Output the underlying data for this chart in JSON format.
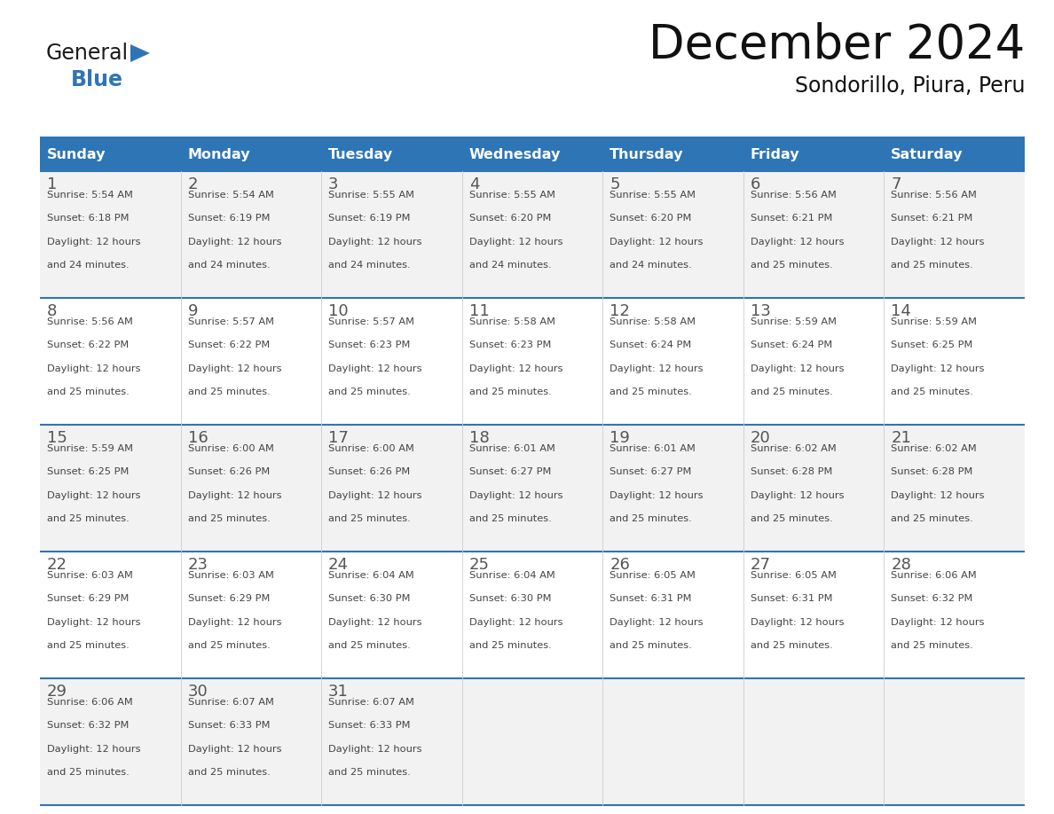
{
  "title": "December 2024",
  "subtitle": "Sondorillo, Piura, Peru",
  "days_of_week": [
    "Sunday",
    "Monday",
    "Tuesday",
    "Wednesday",
    "Thursday",
    "Friday",
    "Saturday"
  ],
  "header_bg": "#2E75B6",
  "header_text_color": "#FFFFFF",
  "row_bg_odd": "#F2F2F2",
  "row_bg_even": "#FFFFFF",
  "cell_border_color": "#2E75B6",
  "day_number_color": "#555555",
  "text_color": "#444444",
  "calendar_data": [
    [
      {
        "day": 1,
        "sunrise": "5:54 AM",
        "sunset": "6:18 PM",
        "daylight_h": "12 hours",
        "daylight_m": "24 minutes"
      },
      {
        "day": 2,
        "sunrise": "5:54 AM",
        "sunset": "6:19 PM",
        "daylight_h": "12 hours",
        "daylight_m": "24 minutes"
      },
      {
        "day": 3,
        "sunrise": "5:55 AM",
        "sunset": "6:19 PM",
        "daylight_h": "12 hours",
        "daylight_m": "24 minutes"
      },
      {
        "day": 4,
        "sunrise": "5:55 AM",
        "sunset": "6:20 PM",
        "daylight_h": "12 hours",
        "daylight_m": "24 minutes"
      },
      {
        "day": 5,
        "sunrise": "5:55 AM",
        "sunset": "6:20 PM",
        "daylight_h": "12 hours",
        "daylight_m": "24 minutes"
      },
      {
        "day": 6,
        "sunrise": "5:56 AM",
        "sunset": "6:21 PM",
        "daylight_h": "12 hours",
        "daylight_m": "25 minutes"
      },
      {
        "day": 7,
        "sunrise": "5:56 AM",
        "sunset": "6:21 PM",
        "daylight_h": "12 hours",
        "daylight_m": "25 minutes"
      }
    ],
    [
      {
        "day": 8,
        "sunrise": "5:56 AM",
        "sunset": "6:22 PM",
        "daylight_h": "12 hours",
        "daylight_m": "25 minutes"
      },
      {
        "day": 9,
        "sunrise": "5:57 AM",
        "sunset": "6:22 PM",
        "daylight_h": "12 hours",
        "daylight_m": "25 minutes"
      },
      {
        "day": 10,
        "sunrise": "5:57 AM",
        "sunset": "6:23 PM",
        "daylight_h": "12 hours",
        "daylight_m": "25 minutes"
      },
      {
        "day": 11,
        "sunrise": "5:58 AM",
        "sunset": "6:23 PM",
        "daylight_h": "12 hours",
        "daylight_m": "25 minutes"
      },
      {
        "day": 12,
        "sunrise": "5:58 AM",
        "sunset": "6:24 PM",
        "daylight_h": "12 hours",
        "daylight_m": "25 minutes"
      },
      {
        "day": 13,
        "sunrise": "5:59 AM",
        "sunset": "6:24 PM",
        "daylight_h": "12 hours",
        "daylight_m": "25 minutes"
      },
      {
        "day": 14,
        "sunrise": "5:59 AM",
        "sunset": "6:25 PM",
        "daylight_h": "12 hours",
        "daylight_m": "25 minutes"
      }
    ],
    [
      {
        "day": 15,
        "sunrise": "5:59 AM",
        "sunset": "6:25 PM",
        "daylight_h": "12 hours",
        "daylight_m": "25 minutes"
      },
      {
        "day": 16,
        "sunrise": "6:00 AM",
        "sunset": "6:26 PM",
        "daylight_h": "12 hours",
        "daylight_m": "25 minutes"
      },
      {
        "day": 17,
        "sunrise": "6:00 AM",
        "sunset": "6:26 PM",
        "daylight_h": "12 hours",
        "daylight_m": "25 minutes"
      },
      {
        "day": 18,
        "sunrise": "6:01 AM",
        "sunset": "6:27 PM",
        "daylight_h": "12 hours",
        "daylight_m": "25 minutes"
      },
      {
        "day": 19,
        "sunrise": "6:01 AM",
        "sunset": "6:27 PM",
        "daylight_h": "12 hours",
        "daylight_m": "25 minutes"
      },
      {
        "day": 20,
        "sunrise": "6:02 AM",
        "sunset": "6:28 PM",
        "daylight_h": "12 hours",
        "daylight_m": "25 minutes"
      },
      {
        "day": 21,
        "sunrise": "6:02 AM",
        "sunset": "6:28 PM",
        "daylight_h": "12 hours",
        "daylight_m": "25 minutes"
      }
    ],
    [
      {
        "day": 22,
        "sunrise": "6:03 AM",
        "sunset": "6:29 PM",
        "daylight_h": "12 hours",
        "daylight_m": "25 minutes"
      },
      {
        "day": 23,
        "sunrise": "6:03 AM",
        "sunset": "6:29 PM",
        "daylight_h": "12 hours",
        "daylight_m": "25 minutes"
      },
      {
        "day": 24,
        "sunrise": "6:04 AM",
        "sunset": "6:30 PM",
        "daylight_h": "12 hours",
        "daylight_m": "25 minutes"
      },
      {
        "day": 25,
        "sunrise": "6:04 AM",
        "sunset": "6:30 PM",
        "daylight_h": "12 hours",
        "daylight_m": "25 minutes"
      },
      {
        "day": 26,
        "sunrise": "6:05 AM",
        "sunset": "6:31 PM",
        "daylight_h": "12 hours",
        "daylight_m": "25 minutes"
      },
      {
        "day": 27,
        "sunrise": "6:05 AM",
        "sunset": "6:31 PM",
        "daylight_h": "12 hours",
        "daylight_m": "25 minutes"
      },
      {
        "day": 28,
        "sunrise": "6:06 AM",
        "sunset": "6:32 PM",
        "daylight_h": "12 hours",
        "daylight_m": "25 minutes"
      }
    ],
    [
      {
        "day": 29,
        "sunrise": "6:06 AM",
        "sunset": "6:32 PM",
        "daylight_h": "12 hours",
        "daylight_m": "25 minutes"
      },
      {
        "day": 30,
        "sunrise": "6:07 AM",
        "sunset": "6:33 PM",
        "daylight_h": "12 hours",
        "daylight_m": "25 minutes"
      },
      {
        "day": 31,
        "sunrise": "6:07 AM",
        "sunset": "6:33 PM",
        "daylight_h": "12 hours",
        "daylight_m": "25 minutes"
      },
      null,
      null,
      null,
      null
    ]
  ],
  "logo_general_color": "#1a1a1a",
  "logo_blue_color": "#2E75B6",
  "title_fontsize": 38,
  "subtitle_fontsize": 17,
  "header_fontsize": 11.5,
  "day_num_fontsize": 12,
  "cell_text_fontsize": 8.2
}
